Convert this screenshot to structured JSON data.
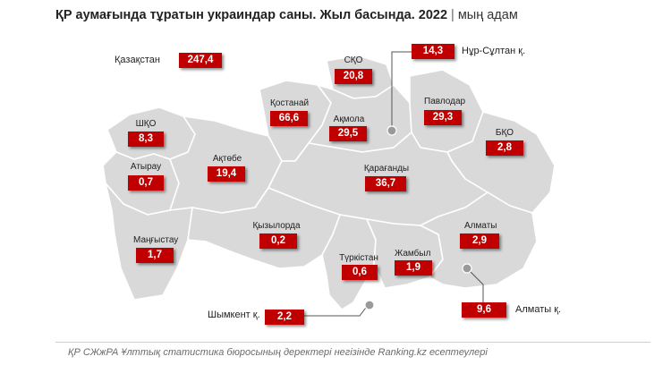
{
  "header": {
    "title": "ҚР аумағында тұратын украиндар саны. Жыл басында. 2022",
    "separator": "|",
    "unit": "мың адам"
  },
  "colors": {
    "box": "#c00000",
    "region_fill": "#d9d9d9",
    "region_border": "#ffffff",
    "marker": "#9a9a9a"
  },
  "total": {
    "label": "Қазақстан",
    "value": "247,4"
  },
  "regions": [
    {
      "id": "sko",
      "name": "СҚО",
      "value": "20,8"
    },
    {
      "id": "nur-sultan",
      "name": "Нұр-Сұлтан қ.",
      "value": "14,3"
    },
    {
      "id": "kostanay",
      "name": "Қостанай",
      "value": "66,6"
    },
    {
      "id": "akmola",
      "name": "Ақмола",
      "value": "29,5"
    },
    {
      "id": "pavlodar",
      "name": "Павлодар",
      "value": "29,3"
    },
    {
      "id": "zko",
      "name": "ШҚО",
      "value": "8,3"
    },
    {
      "id": "vko",
      "name": "БҚО",
      "value": "2,8"
    },
    {
      "id": "atyrau",
      "name": "Атырау",
      "value": "0,7"
    },
    {
      "id": "aktobe",
      "name": "Ақтөбе",
      "value": "19,4"
    },
    {
      "id": "karaganda",
      "name": "Қарағанды",
      "value": "36,7"
    },
    {
      "id": "kyzylorda",
      "name": "Қызылорда",
      "value": "0,2"
    },
    {
      "id": "almaty-obl",
      "name": "Алматы",
      "value": "2,9"
    },
    {
      "id": "mangystau",
      "name": "Маңғыстау",
      "value": "1,7"
    },
    {
      "id": "turkistan",
      "name": "Түркістан",
      "value": "0,6"
    },
    {
      "id": "zhambyl",
      "name": "Жамбыл",
      "value": "1,9"
    },
    {
      "id": "shymkent",
      "name": "Шымкент қ.",
      "value": "2,2"
    },
    {
      "id": "almaty-city",
      "name": "Алматы қ.",
      "value": "9,6"
    }
  ],
  "source": "ҚР СЖжРА Ұлттық статистика бюросының деректері негізінде Ranking.kz есептеулері"
}
